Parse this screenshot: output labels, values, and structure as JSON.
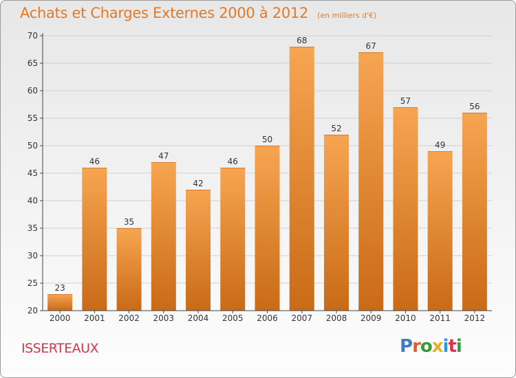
{
  "title": "Achats et Charges Externes 2000 à 2012",
  "unit_note": "(en milliers d'€)",
  "place_name": "ISSERTEAUX",
  "logo": {
    "text": "Proxiti",
    "letters": [
      "P",
      "r",
      "o",
      "x",
      "i",
      "t",
      "i"
    ],
    "letter_colors": [
      "#3e7cc3",
      "#e85a2a",
      "#3a9a3a",
      "#e8b020",
      "#2a9ad8",
      "#d8344f",
      "#3a9a3a"
    ]
  },
  "colors": {
    "bar_light": "#f7a551",
    "bar_dark": "#c96a17",
    "grid": "#cfcfcf",
    "axis": "#444444",
    "title": "#e07a2a",
    "place": "#d8344f"
  },
  "chart_data": {
    "type": "bar",
    "title": "Achats et Charges Externes 2000 à 2012",
    "categories": [
      "2000",
      "2001",
      "2002",
      "2003",
      "2004",
      "2005",
      "2006",
      "2007",
      "2008",
      "2009",
      "2010",
      "2011",
      "2012"
    ],
    "values": [
      23,
      46,
      35,
      47,
      42,
      46,
      50,
      68,
      52,
      67,
      57,
      49,
      56
    ],
    "ylim": [
      20,
      70
    ],
    "yticks": [
      20,
      25,
      30,
      35,
      40,
      45,
      50,
      55,
      60,
      65,
      70
    ],
    "grid": true,
    "xlabel": "",
    "ylabel": ""
  }
}
